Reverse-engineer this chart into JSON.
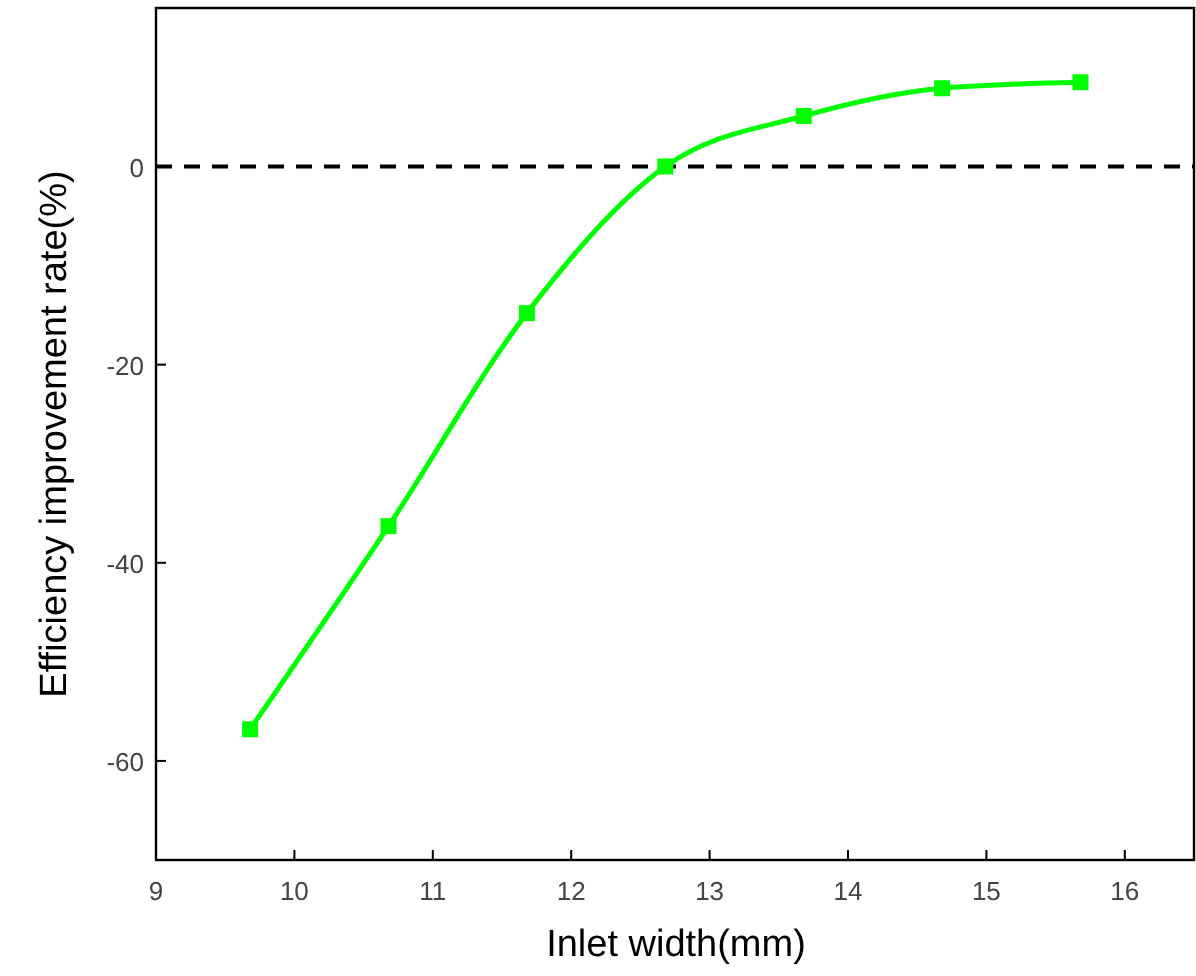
{
  "chart_data": {
    "type": "line",
    "xlabel": "Inlet width(mm)",
    "ylabel": "Efficiency improvement rate(%)",
    "x": [
      9.68,
      10.68,
      11.68,
      12.68,
      13.68,
      14.68,
      15.68
    ],
    "series": [
      {
        "color": "#00ff00",
        "values": [
          -56.8,
          -36.3,
          -14.8,
          0,
          5.1,
          7.9,
          8.5
        ]
      }
    ],
    "xlim": [
      9,
      16.5
    ],
    "xticks": [
      9,
      10,
      11,
      12,
      13,
      14,
      15,
      16
    ],
    "ylim": [
      -70,
      16
    ],
    "yticks": [
      -60,
      -40,
      -20,
      0
    ],
    "ref_lines": [
      {
        "axis": "y",
        "value": 0,
        "color": "#000000",
        "line_style": "dashed"
      }
    ],
    "marker": "square",
    "line_style": "solid",
    "grid": false
  }
}
